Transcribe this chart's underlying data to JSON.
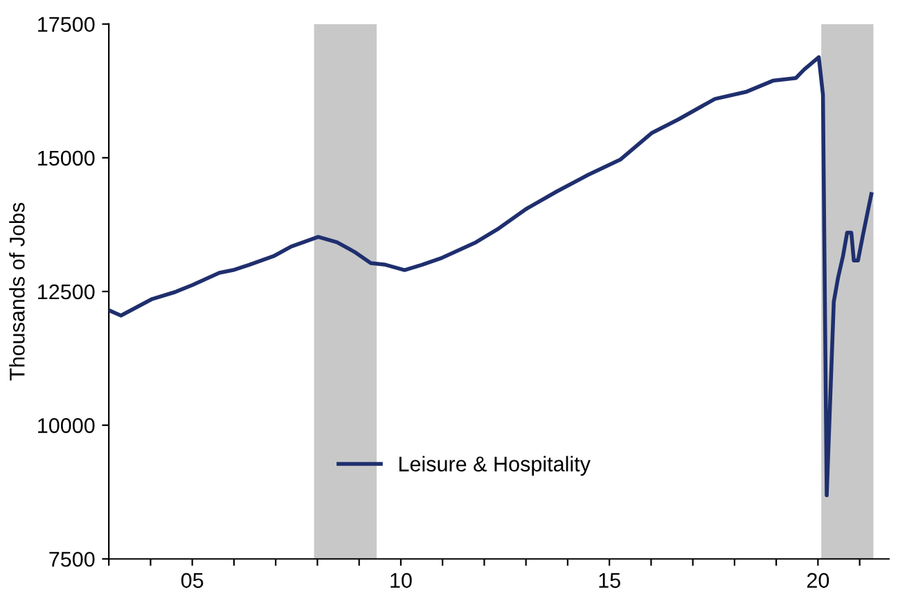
{
  "chart_data": {
    "type": "line",
    "ylabel": "Thousands of Jobs",
    "x": [
      2003.0,
      2003.29,
      2004.04,
      2004.59,
      2005.0,
      2005.65,
      2005.98,
      2006.37,
      2006.95,
      2007.37,
      2008.02,
      2008.47,
      2008.89,
      2009.28,
      2009.63,
      2010.09,
      2010.51,
      2010.99,
      2011.8,
      2012.35,
      2013.0,
      2013.74,
      2014.49,
      2015.27,
      2016.01,
      2016.66,
      2017.53,
      2018.27,
      2018.92,
      2019.47,
      2019.67,
      2020.02,
      2020.12,
      2020.21,
      2020.38,
      2020.48,
      2020.6,
      2020.7,
      2020.8,
      2020.86,
      2020.96,
      2021.09,
      2021.28
    ],
    "series": [
      {
        "name": "Leisure & Hospitality",
        "color": "#1f2f6e",
        "values": [
          12150,
          12050,
          12360,
          12490,
          12620,
          12850,
          12900,
          13000,
          13160,
          13340,
          13520,
          13420,
          13240,
          13030,
          13000,
          12900,
          13000,
          13130,
          13420,
          13680,
          14040,
          14370,
          14680,
          14970,
          15460,
          15720,
          16100,
          16230,
          16440,
          16490,
          16650,
          16880,
          16180,
          8690,
          12310,
          12750,
          13160,
          13600,
          13600,
          13080,
          13080,
          13600,
          14320
        ]
      }
    ],
    "xlim": [
      2003,
      2021.7
    ],
    "xticks": [
      {
        "value": 2003,
        "label": null
      },
      {
        "value": 2004,
        "label": null
      },
      {
        "value": 2005,
        "label": "05"
      },
      {
        "value": 2006,
        "label": null
      },
      {
        "value": 2007,
        "label": null
      },
      {
        "value": 2008,
        "label": null
      },
      {
        "value": 2009,
        "label": null
      },
      {
        "value": 2010,
        "label": "10"
      },
      {
        "value": 2011,
        "label": null
      },
      {
        "value": 2012,
        "label": null
      },
      {
        "value": 2013,
        "label": null
      },
      {
        "value": 2014,
        "label": null
      },
      {
        "value": 2015,
        "label": "15"
      },
      {
        "value": 2016,
        "label": null
      },
      {
        "value": 2017,
        "label": null
      },
      {
        "value": 2018,
        "label": null
      },
      {
        "value": 2019,
        "label": null
      },
      {
        "value": 2020,
        "label": "20"
      },
      {
        "value": 2021,
        "label": null
      }
    ],
    "ylim": [
      7500,
      17500
    ],
    "yticks": [
      7500,
      10000,
      12500,
      15000,
      17500
    ],
    "bands": [
      {
        "axis": "x",
        "from": 2007.92,
        "to": 2009.42,
        "color": "#c8c8c8"
      },
      {
        "axis": "x",
        "from": 2020.08,
        "to": 2021.33,
        "color": "#c8c8c8"
      }
    ],
    "legend": "bottom left",
    "grid": false,
    "marker": "none",
    "line_style": "solid"
  }
}
